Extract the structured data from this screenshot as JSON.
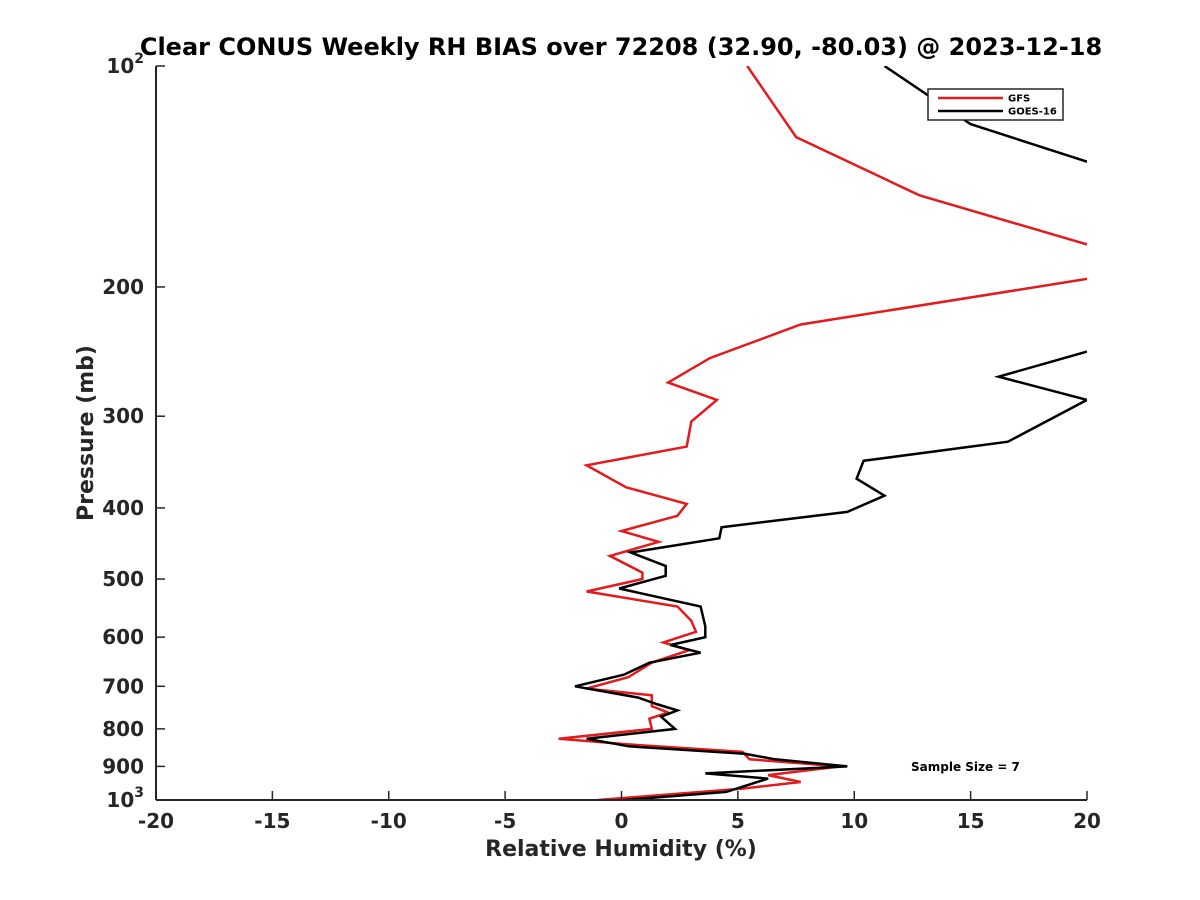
{
  "chart_data": {
    "type": "line",
    "title": "Clear CONUS Weekly RH BIAS over 72208 (32.90, -80.03) @ 2023-12-18",
    "xlabel": "Relative Humidity (%)",
    "ylabel": "Pressure (mb)",
    "xlim": [
      -20,
      20
    ],
    "ylim": [
      100,
      1000
    ],
    "y_scale": "log",
    "y_reversed": true,
    "grid": false,
    "legend_position": "top-right",
    "x_ticks": [
      "-20",
      "-15",
      "-10",
      "-5",
      "0",
      "5",
      "10",
      "15",
      "20"
    ],
    "y_ticks": [
      {
        "value": 100,
        "base": "10",
        "exp": "2"
      },
      {
        "value": 200,
        "label": "200"
      },
      {
        "value": 300,
        "label": "300"
      },
      {
        "value": 400,
        "label": "400"
      },
      {
        "value": 500,
        "label": "500"
      },
      {
        "value": 600,
        "label": "600"
      },
      {
        "value": 700,
        "label": "700"
      },
      {
        "value": 800,
        "label": "800"
      },
      {
        "value": 900,
        "label": "900"
      },
      {
        "value": 1000,
        "base": "10",
        "exp": "3"
      }
    ],
    "series": [
      {
        "name": "GFS",
        "color": "#e41a1c",
        "points": [
          [
            5.4,
            100
          ],
          [
            7.5,
            125
          ],
          [
            12.8,
            150
          ],
          [
            20,
            175
          ],
          [
            null,
            185
          ],
          [
            20,
            195
          ],
          [
            7.7,
            225
          ],
          [
            3.8,
            250
          ],
          [
            2,
            270
          ],
          [
            4.1,
            285
          ],
          [
            3,
            305
          ],
          [
            2.8,
            330
          ],
          [
            -1.5,
            350
          ],
          [
            0.2,
            375
          ],
          [
            2.8,
            395
          ],
          [
            2.4,
            410
          ],
          [
            0,
            430
          ],
          [
            1.6,
            445
          ],
          [
            -0.5,
            465
          ],
          [
            0.9,
            490
          ],
          [
            0.9,
            500
          ],
          [
            -1.5,
            520
          ],
          [
            2.4,
            545
          ],
          [
            3,
            570
          ],
          [
            3.2,
            590
          ],
          [
            1.8,
            610
          ],
          [
            2.9,
            625
          ],
          [
            1.3,
            650
          ],
          [
            0.3,
            680
          ],
          [
            -1.5,
            705
          ],
          [
            1.3,
            720
          ],
          [
            1.3,
            745
          ],
          [
            2,
            760
          ],
          [
            1.2,
            775
          ],
          [
            1.3,
            800
          ],
          [
            -2.7,
            825
          ],
          [
            0.3,
            840
          ],
          [
            5.2,
            860
          ],
          [
            5.5,
            880
          ],
          [
            9.4,
            900
          ],
          [
            6.3,
            925
          ],
          [
            7.7,
            945
          ],
          [
            5.2,
            965
          ],
          [
            -1,
            1000
          ]
        ]
      },
      {
        "name": "GOES-16",
        "color": "#000000",
        "points": [
          [
            11.3,
            100
          ],
          [
            15,
            120
          ],
          [
            20,
            135
          ],
          [
            null,
            150
          ],
          [
            20,
            245
          ],
          [
            16.2,
            265
          ],
          [
            20,
            285
          ],
          [
            16.6,
            325
          ],
          [
            10.4,
            345
          ],
          [
            10.1,
            365
          ],
          [
            11.3,
            385
          ],
          [
            9.7,
            405
          ],
          [
            4.3,
            425
          ],
          [
            4.2,
            440
          ],
          [
            0.4,
            460
          ],
          [
            1.9,
            480
          ],
          [
            1.9,
            495
          ],
          [
            -0.1,
            515
          ],
          [
            3.4,
            545
          ],
          [
            3.6,
            580
          ],
          [
            3.6,
            600
          ],
          [
            2.1,
            615
          ],
          [
            3.4,
            630
          ],
          [
            1.2,
            650
          ],
          [
            0.1,
            675
          ],
          [
            -2,
            700
          ],
          [
            0.7,
            725
          ],
          [
            1.5,
            740
          ],
          [
            2.4,
            755
          ],
          [
            1.7,
            770
          ],
          [
            2.3,
            800
          ],
          [
            -1.5,
            825
          ],
          [
            0.3,
            845
          ],
          [
            5.3,
            865
          ],
          [
            6.6,
            880
          ],
          [
            9.7,
            900
          ],
          [
            3.6,
            920
          ],
          [
            6.3,
            935
          ],
          [
            4.5,
            975
          ],
          [
            0.1,
            1000
          ]
        ]
      }
    ],
    "annotation": "Sample Size = 7"
  }
}
